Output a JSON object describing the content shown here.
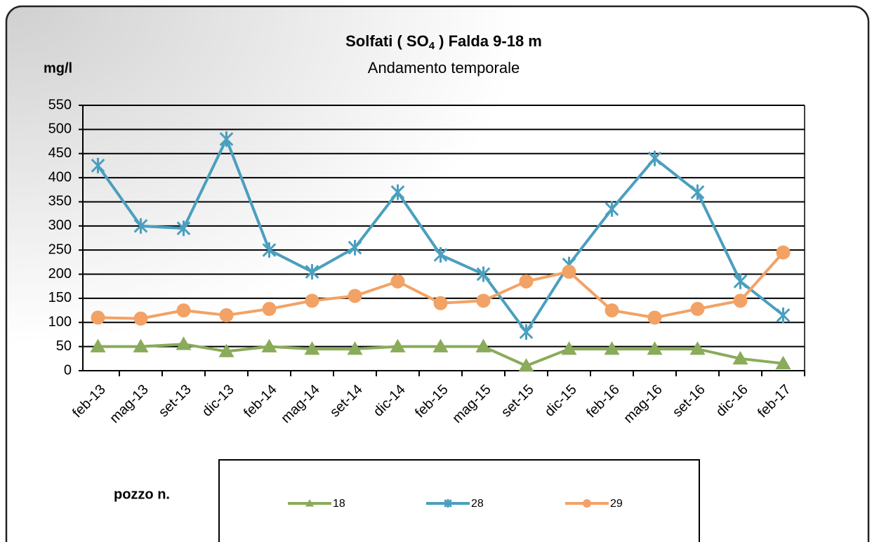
{
  "chart_data": {
    "type": "line",
    "title": [
      "Solfati ( SO",
      "4",
      " ) Falda 9-18 m"
    ],
    "subtitle": "Andamento temporale",
    "y_label": "mg/l",
    "legend_title": "pozzo n.",
    "categories": [
      "feb-13",
      "mag-13",
      "set-13",
      "dic-13",
      "feb-14",
      "mag-14",
      "set-14",
      "dic-14",
      "feb-15",
      "mag-15",
      "set-15",
      "dic-15",
      "feb-16",
      "mag-16",
      "set-16",
      "dic-16",
      "feb-17"
    ],
    "series": [
      {
        "name": "18",
        "color": "#8aab5a",
        "marker": "triangle",
        "values": [
          50,
          50,
          55,
          40,
          50,
          45,
          45,
          50,
          50,
          50,
          10,
          45,
          45,
          45,
          45,
          25,
          15
        ]
      },
      {
        "name": "28",
        "color": "#4a9fbe",
        "marker": "star",
        "values": [
          425,
          300,
          295,
          480,
          250,
          205,
          255,
          370,
          240,
          200,
          80,
          220,
          335,
          440,
          370,
          185,
          115
        ]
      },
      {
        "name": "29",
        "color": "#f2a265",
        "marker": "circle",
        "values": [
          110,
          108,
          125,
          115,
          128,
          145,
          155,
          185,
          140,
          145,
          185,
          205,
          125,
          110,
          128,
          145,
          245
        ]
      }
    ],
    "ylim": [
      0,
      550
    ],
    "yticks": [
      0,
      50,
      100,
      150,
      200,
      250,
      300,
      350,
      400,
      450,
      500,
      550
    ],
    "grid": true
  }
}
